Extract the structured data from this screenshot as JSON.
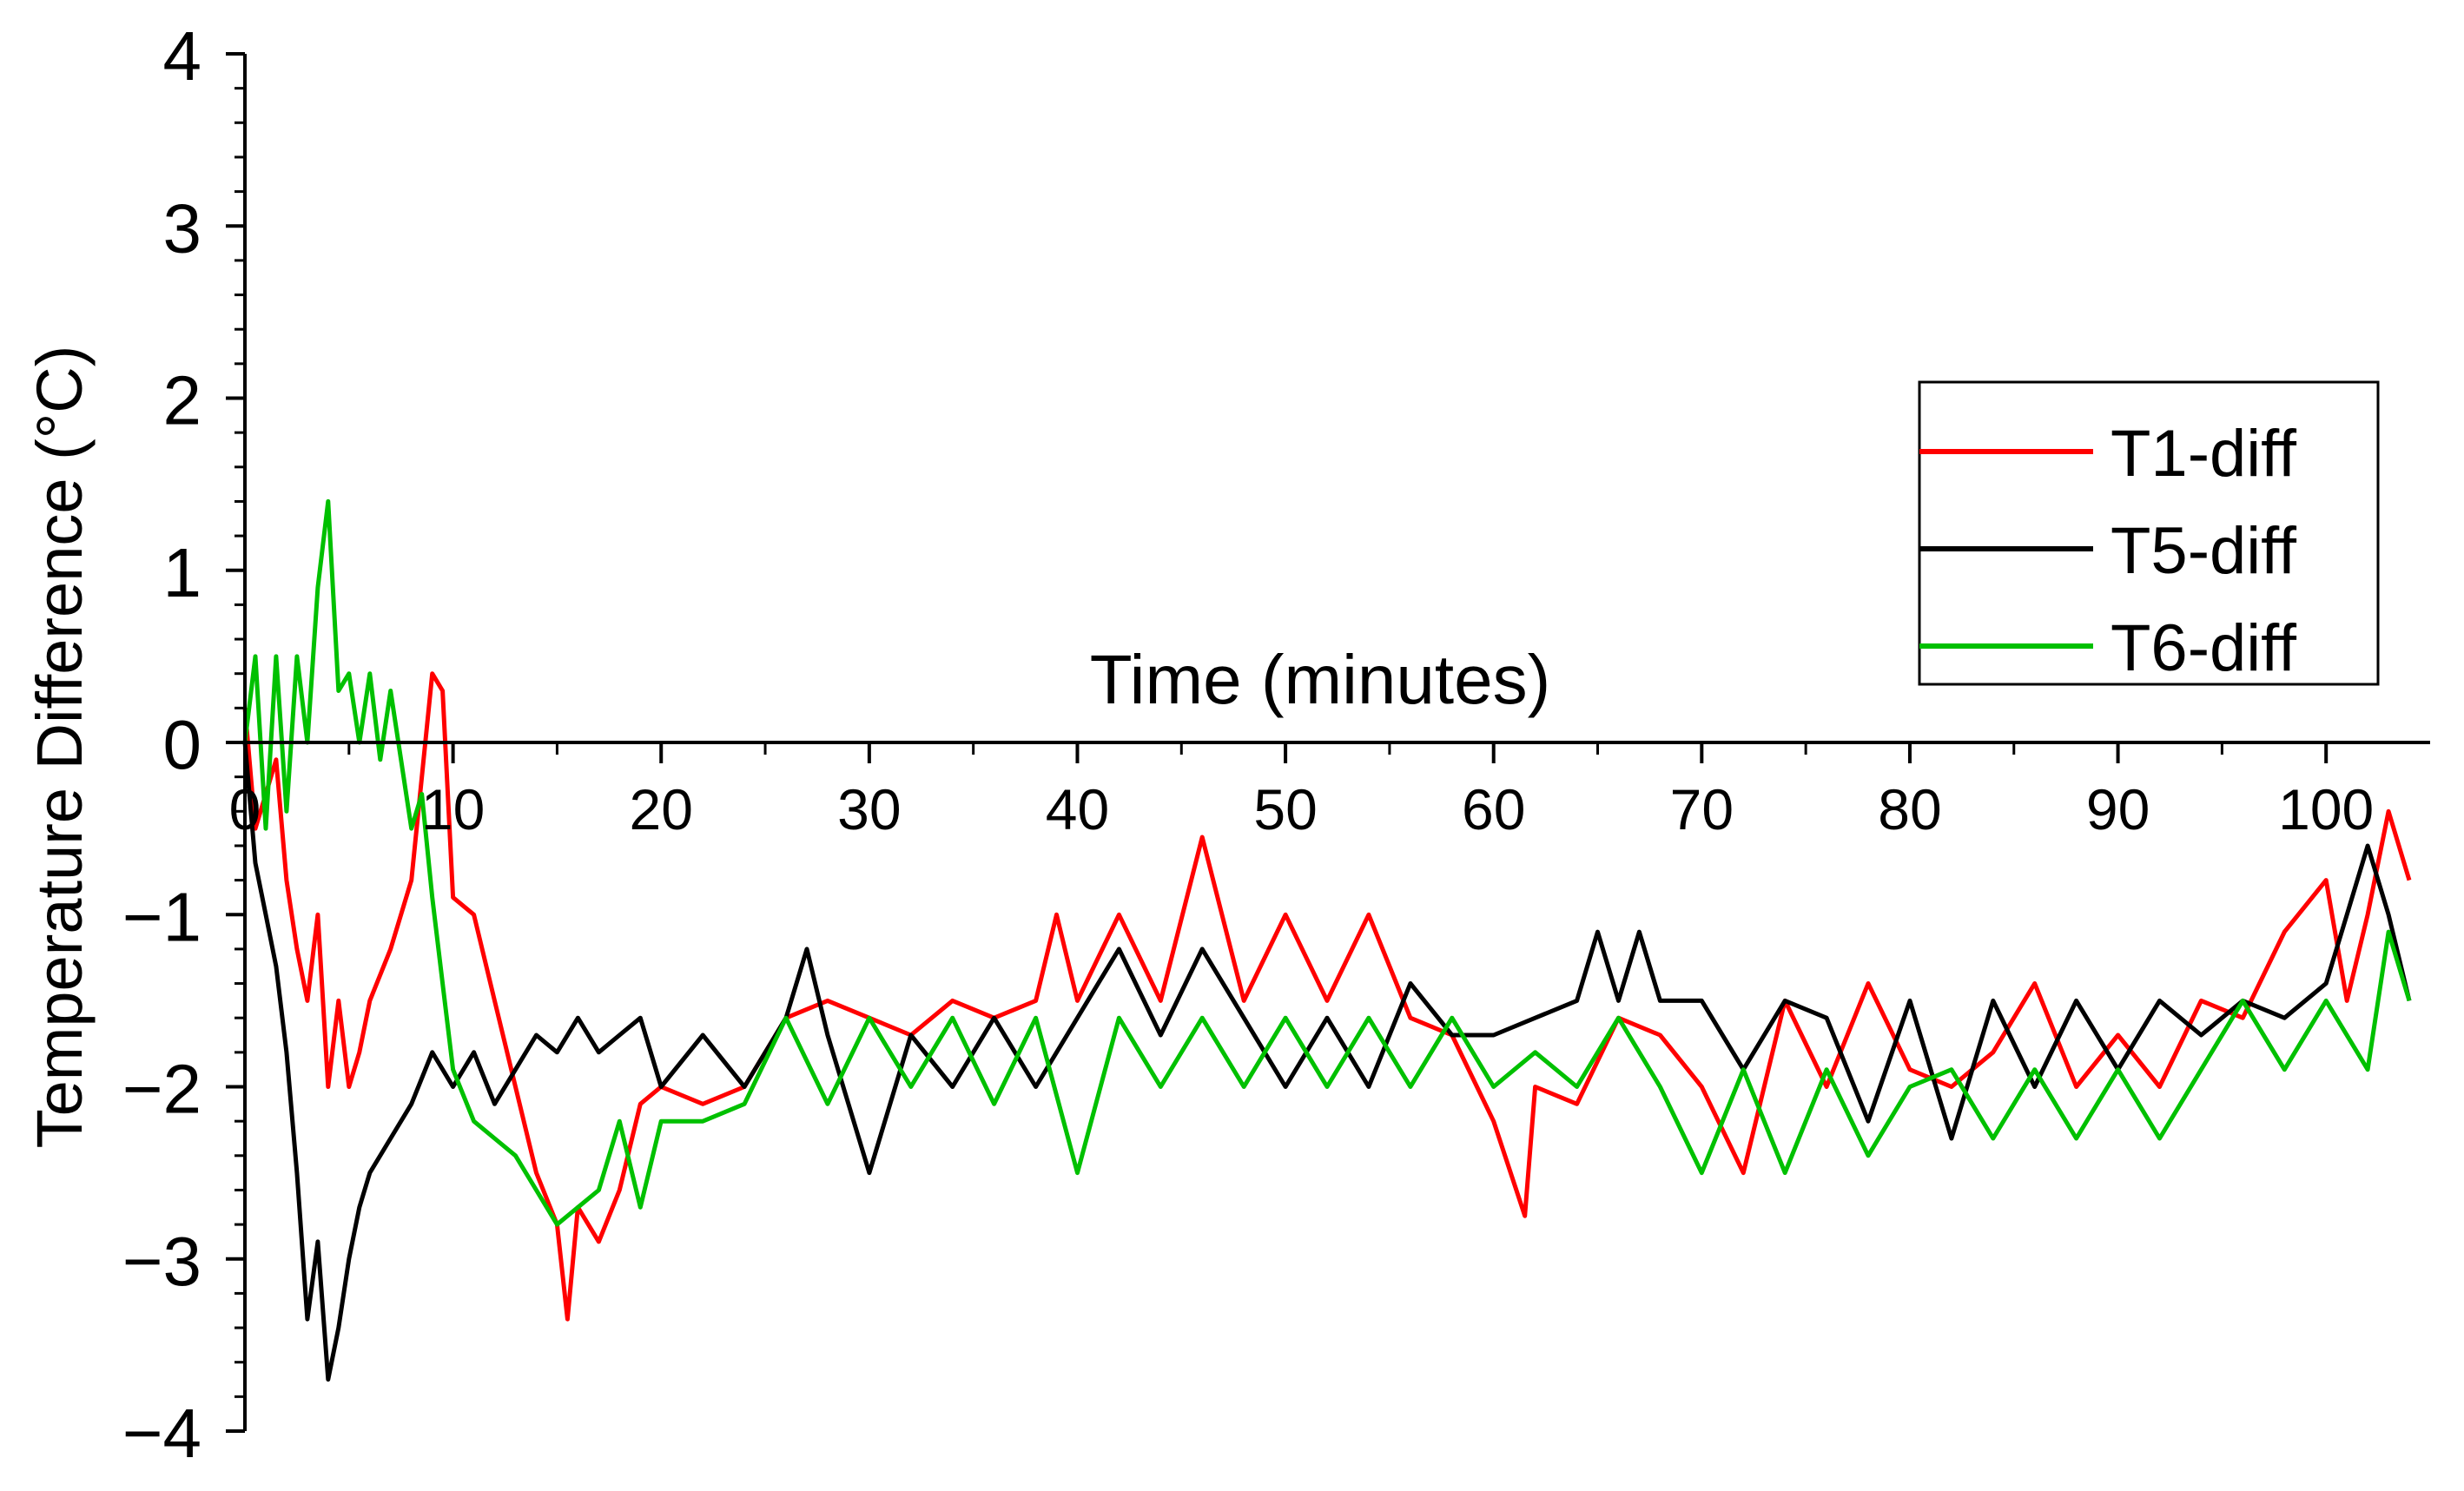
{
  "chart_data": {
    "type": "line",
    "title": "",
    "xlabel": "Time (minutes)",
    "ylabel": "Temperature Difference (°C)",
    "xlim": [
      0,
      105
    ],
    "ylim": [
      -4,
      4
    ],
    "x_ticks": [
      0,
      10,
      20,
      30,
      40,
      50,
      60,
      70,
      80,
      90,
      100
    ],
    "y_ticks": [
      4,
      3,
      2,
      1,
      0,
      -1,
      -2,
      -3,
      -4
    ],
    "x_tick_labels": [
      "0",
      "10",
      "20",
      "30",
      "40",
      "50",
      "60",
      "70",
      "80",
      "90",
      "100"
    ],
    "y_tick_labels": [
      "4",
      "3",
      "2",
      "1",
      "0",
      "−1",
      "−2",
      "−3",
      "−4"
    ],
    "grid": false,
    "legend_position": "top-right",
    "series": [
      {
        "name": "T1-diff",
        "color": "#ff0000",
        "x": [
          0,
          0.5,
          1,
          1.5,
          2,
          2.5,
          3,
          3.5,
          4,
          4.5,
          5,
          5.5,
          6,
          7,
          8,
          9,
          9.5,
          10,
          11,
          12,
          13,
          14,
          15,
          15.5,
          16,
          17,
          18,
          19,
          20,
          22,
          24,
          26,
          28,
          30,
          32,
          34,
          36,
          38,
          39,
          40,
          42,
          44,
          46,
          48,
          50,
          52,
          54,
          56,
          58,
          60,
          61.5,
          62,
          64,
          66,
          68,
          70,
          72,
          74,
          76,
          78,
          80,
          82,
          84,
          86,
          88,
          90,
          92,
          94,
          96,
          98,
          100,
          101,
          102,
          103,
          104
        ],
        "y": [
          0.2,
          -0.5,
          -0.3,
          -0.1,
          -0.8,
          -1.2,
          -1.5,
          -1.0,
          -2.0,
          -1.5,
          -2.0,
          -1.8,
          -1.5,
          -1.2,
          -0.8,
          0.4,
          0.3,
          -0.9,
          -1.0,
          -1.5,
          -2.0,
          -2.5,
          -2.8,
          -3.35,
          -2.7,
          -2.9,
          -2.6,
          -2.1,
          -2.0,
          -2.1,
          -2.0,
          -1.6,
          -1.5,
          -1.6,
          -1.7,
          -1.5,
          -1.6,
          -1.5,
          -1.0,
          -1.5,
          -1.0,
          -1.5,
          -0.55,
          -1.5,
          -1.0,
          -1.5,
          -1.0,
          -1.6,
          -1.7,
          -2.2,
          -2.75,
          -2.0,
          -2.1,
          -1.6,
          -1.7,
          -2.0,
          -2.5,
          -1.5,
          -2.0,
          -1.4,
          -1.9,
          -2.0,
          -1.8,
          -1.4,
          -2.0,
          -1.7,
          -2.0,
          -1.5,
          -1.6,
          -1.1,
          -0.8,
          -1.5,
          -1.0,
          -0.4,
          -0.8
        ]
      },
      {
        "name": "T5-diff",
        "color": "#000000",
        "x": [
          0,
          0.5,
          1,
          1.5,
          2,
          2.5,
          3,
          3.5,
          4,
          4.5,
          5,
          5.5,
          6,
          7,
          8,
          9,
          10,
          11,
          12,
          13,
          14,
          15,
          16,
          17,
          18,
          19,
          20,
          22,
          24,
          26,
          27,
          28,
          30,
          32,
          34,
          36,
          38,
          40,
          42,
          44,
          46,
          48,
          50,
          52,
          54,
          56,
          58,
          60,
          62,
          64,
          65,
          66,
          67,
          68,
          70,
          72,
          74,
          76,
          78,
          80,
          82,
          84,
          86,
          88,
          90,
          92,
          94,
          96,
          98,
          100,
          101,
          102,
          103,
          104
        ],
        "y": [
          0.0,
          -0.7,
          -1.0,
          -1.3,
          -1.8,
          -2.5,
          -3.35,
          -2.9,
          -3.7,
          -3.4,
          -3.0,
          -2.7,
          -2.5,
          -2.3,
          -2.1,
          -1.8,
          -2.0,
          -1.8,
          -2.1,
          -1.9,
          -1.7,
          -1.8,
          -1.6,
          -1.8,
          -1.7,
          -1.6,
          -2.0,
          -1.7,
          -2.0,
          -1.6,
          -1.2,
          -1.7,
          -2.5,
          -1.7,
          -2.0,
          -1.6,
          -2.0,
          -1.6,
          -1.2,
          -1.7,
          -1.2,
          -1.6,
          -2.0,
          -1.6,
          -2.0,
          -1.4,
          -1.7,
          -1.7,
          -1.6,
          -1.5,
          -1.1,
          -1.5,
          -1.1,
          -1.5,
          -1.5,
          -1.9,
          -1.5,
          -1.6,
          -2.2,
          -1.5,
          -2.3,
          -1.5,
          -2.0,
          -1.5,
          -1.9,
          -1.5,
          -1.7,
          -1.5,
          -1.6,
          -1.4,
          -1.0,
          -0.6,
          -1.0,
          -1.5
        ]
      },
      {
        "name": "T6-diff",
        "color": "#00c000",
        "x": [
          0,
          0.5,
          1,
          1.5,
          2,
          2.5,
          3,
          3.5,
          4,
          4.5,
          5,
          5.5,
          6,
          6.5,
          7,
          7.5,
          8,
          8.5,
          9,
          9.5,
          10,
          11,
          12,
          13,
          14,
          15,
          16,
          17,
          18,
          19,
          20,
          22,
          24,
          26,
          28,
          30,
          32,
          34,
          36,
          38,
          40,
          42,
          44,
          46,
          48,
          50,
          52,
          54,
          56,
          58,
          60,
          62,
          64,
          66,
          68,
          70,
          72,
          74,
          76,
          78,
          80,
          82,
          84,
          86,
          88,
          90,
          92,
          94,
          96,
          98,
          100,
          102,
          103,
          104
        ],
        "y": [
          0.0,
          0.5,
          -0.5,
          0.5,
          -0.4,
          0.5,
          0.0,
          0.9,
          1.4,
          0.3,
          0.4,
          0.0,
          0.4,
          -0.1,
          0.3,
          -0.1,
          -0.5,
          -0.3,
          -0.9,
          -1.4,
          -1.9,
          -2.2,
          -2.3,
          -2.4,
          -2.6,
          -2.8,
          -2.7,
          -2.6,
          -2.2,
          -2.7,
          -2.2,
          -2.2,
          -2.1,
          -1.6,
          -2.1,
          -1.6,
          -2.0,
          -1.6,
          -2.1,
          -1.6,
          -2.5,
          -1.6,
          -2.0,
          -1.6,
          -2.0,
          -1.6,
          -2.0,
          -1.6,
          -2.0,
          -1.6,
          -2.0,
          -1.8,
          -2.0,
          -1.6,
          -2.0,
          -2.5,
          -1.9,
          -2.5,
          -1.9,
          -2.4,
          -2.0,
          -1.9,
          -2.3,
          -1.9,
          -2.3,
          -1.9,
          -2.3,
          -1.9,
          -1.5,
          -1.9,
          -1.5,
          -1.9,
          -1.1,
          -1.5
        ]
      }
    ]
  }
}
